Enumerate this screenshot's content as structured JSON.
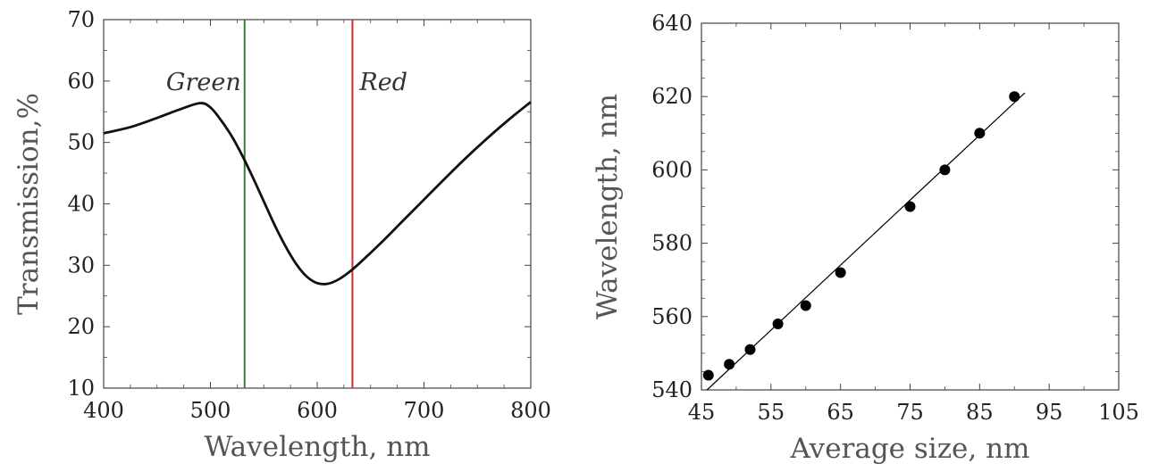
{
  "chart_data": [
    {
      "type": "line",
      "title": "",
      "xlabel": "Wavelength, nm",
      "ylabel": "Transmission,%",
      "xlim": [
        400,
        800
      ],
      "ylim": [
        10,
        70
      ],
      "xticks": [
        400,
        500,
        600,
        700,
        800
      ],
      "yticks": [
        10,
        20,
        30,
        40,
        50,
        60,
        70
      ],
      "grid": false,
      "series": [
        {
          "x": [
            400,
            425,
            450,
            470,
            490,
            500,
            510,
            520,
            530,
            540,
            550,
            560,
            570,
            580,
            590,
            600,
            610,
            620,
            630,
            640,
            660,
            680,
            700,
            720,
            740,
            760,
            780,
            800
          ],
          "y": [
            51.5,
            52.5,
            54,
            55.3,
            56.4,
            55.7,
            53.6,
            51,
            47.8,
            44.2,
            40.4,
            36.6,
            33.2,
            30.3,
            28.2,
            27.1,
            27,
            27.7,
            28.9,
            30.4,
            33.7,
            37.2,
            40.7,
            44.2,
            47.6,
            50.8,
            53.8,
            56.6
          ],
          "color": "#111111"
        }
      ],
      "vertical_lines": [
        {
          "label": "Green",
          "x": 532,
          "color": "#3a7d3a"
        },
        {
          "label": "Red",
          "x": 633,
          "color": "#d42a2a"
        }
      ]
    },
    {
      "type": "scatter",
      "title": "",
      "xlabel": "Average size, nm",
      "ylabel": "Wavelength, nm",
      "xlim": [
        45,
        105
      ],
      "ylim": [
        540,
        640
      ],
      "xticks": [
        45,
        55,
        65,
        75,
        85,
        95,
        105
      ],
      "yticks": [
        540,
        560,
        580,
        600,
        620,
        640
      ],
      "grid": false,
      "points": {
        "x": [
          46,
          49,
          52,
          56,
          60,
          65,
          75,
          80,
          85,
          90
        ],
        "y": [
          544,
          547,
          551,
          558,
          563,
          572,
          590,
          600,
          610,
          620
        ],
        "color": "#000000"
      },
      "fit_line": {
        "x": [
          45.8,
          91.5
        ],
        "y": [
          540,
          621
        ],
        "color": "#000000"
      }
    }
  ]
}
